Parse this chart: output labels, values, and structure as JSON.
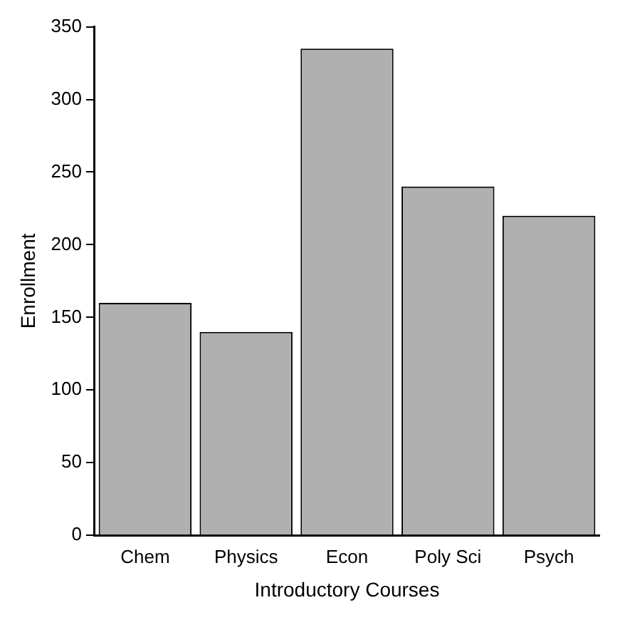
{
  "chart_data": {
    "type": "bar",
    "xlabel": "Introductory Courses",
    "ylabel": "Enrollment",
    "categories": [
      "Chem",
      "Physics",
      "Econ",
      "Poly Sci",
      "Psych"
    ],
    "values": [
      160,
      140,
      335,
      240,
      220
    ],
    "color": "#b0b0b0",
    "ylim": [
      0,
      350
    ],
    "yticks": [
      0,
      50,
      100,
      150,
      200,
      250,
      300,
      350
    ],
    "grid": false
  }
}
